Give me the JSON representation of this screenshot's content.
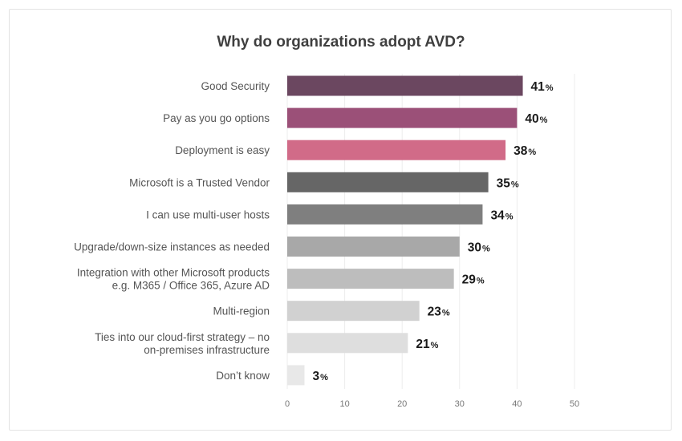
{
  "chart_data": {
    "type": "bar",
    "orientation": "horizontal",
    "title": "Why do organizations adopt AVD?",
    "xlabel": "",
    "ylabel": "",
    "value_suffix": "%",
    "xlim": [
      0,
      50
    ],
    "xticks": [
      0,
      10,
      20,
      30,
      40,
      50
    ],
    "grid": true,
    "categories": [
      [
        "Good Security"
      ],
      [
        "Pay as you go options"
      ],
      [
        "Deployment is easy"
      ],
      [
        "Microsoft is a Trusted Vendor"
      ],
      [
        "I can use multi-user hosts"
      ],
      [
        "Upgrade/down-size instances as needed"
      ],
      [
        "Integration with other Microsoft products",
        "e.g. M365 / Office 365, Azure AD"
      ],
      [
        "Multi-region"
      ],
      [
        "Ties into our cloud-first strategy – no",
        "on-premises infrastructure"
      ],
      [
        "Don’t know"
      ]
    ],
    "values": [
      41,
      40,
      38,
      35,
      34,
      30,
      29,
      23,
      21,
      3
    ],
    "colors": [
      "#6b4760",
      "#9b5078",
      "#d16b88",
      "#666666",
      "#7f7f7f",
      "#a8a8a8",
      "#bdbdbd",
      "#d1d1d1",
      "#dedede",
      "#e8e8e8"
    ]
  }
}
